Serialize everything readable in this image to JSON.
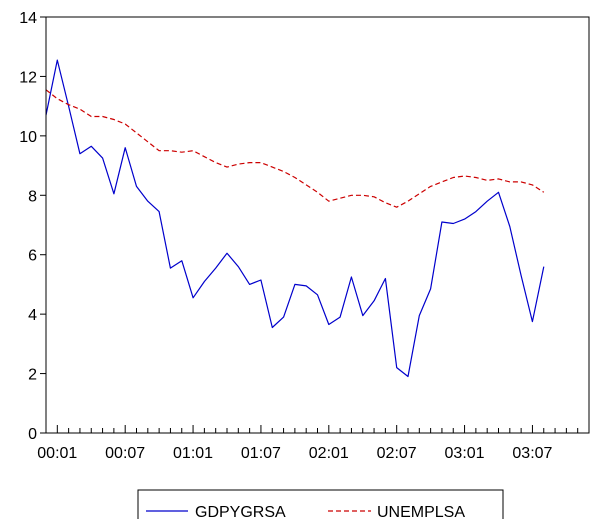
{
  "chart_data": {
    "type": "line",
    "title": "",
    "xlabel": "",
    "ylabel": "",
    "ylim": [
      0,
      14
    ],
    "yticks": [
      0,
      2,
      4,
      6,
      8,
      10,
      12,
      14
    ],
    "y_tick_labels": [
      "0",
      "2",
      "4",
      "6",
      "8",
      "10",
      "12",
      "14"
    ],
    "x_tick_labels": [
      "00:01",
      "00:07",
      "01:01",
      "01:07",
      "02:01",
      "02:07",
      "03:01",
      "03:07"
    ],
    "x_tick_positions": [
      1,
      7,
      13,
      19,
      25,
      31,
      37,
      43
    ],
    "x_range": [
      0,
      48
    ],
    "grid": false,
    "legend_placement": "bottom-center",
    "series": [
      {
        "name": "GDPYGRSA",
        "color": "#0000cc",
        "style": "solid",
        "x": [
          0,
          1,
          2,
          3,
          4,
          5,
          6,
          7,
          8,
          9,
          10,
          11,
          12,
          13,
          14,
          15,
          16,
          17,
          18,
          19,
          20,
          21,
          22,
          23,
          24,
          25,
          26,
          27,
          28,
          29,
          30,
          31,
          32,
          33,
          34,
          35,
          36,
          37,
          38,
          39,
          40,
          41,
          42,
          43,
          44
        ],
        "values": [
          10.7,
          12.55,
          11.0,
          9.4,
          9.65,
          9.25,
          8.05,
          9.6,
          8.3,
          7.8,
          7.45,
          5.55,
          5.8,
          4.55,
          5.1,
          5.55,
          6.05,
          5.6,
          5.0,
          5.15,
          3.55,
          3.9,
          5.0,
          4.95,
          4.65,
          3.65,
          3.9,
          5.25,
          3.95,
          4.45,
          5.2,
          2.2,
          1.9,
          3.95,
          4.85,
          7.1,
          7.05,
          7.2,
          7.45,
          7.8,
          8.1,
          6.95,
          5.3,
          3.75,
          5.6
        ]
      },
      {
        "name": "UNEMPLSA",
        "color": "#cc0000",
        "style": "dashed",
        "x": [
          0,
          1,
          2,
          3,
          4,
          5,
          6,
          7,
          8,
          9,
          10,
          11,
          12,
          13,
          14,
          15,
          16,
          17,
          18,
          19,
          20,
          21,
          22,
          23,
          24,
          25,
          26,
          27,
          28,
          29,
          30,
          31,
          32,
          33,
          34,
          35,
          36,
          37,
          38,
          39,
          40,
          41,
          42,
          43,
          44
        ],
        "values": [
          11.55,
          11.25,
          11.05,
          10.9,
          10.65,
          10.65,
          10.55,
          10.4,
          10.1,
          9.8,
          9.5,
          9.5,
          9.45,
          9.5,
          9.3,
          9.1,
          8.95,
          9.05,
          9.1,
          9.1,
          8.95,
          8.8,
          8.6,
          8.35,
          8.1,
          7.8,
          7.9,
          8.0,
          8.0,
          7.95,
          7.75,
          7.6,
          7.8,
          8.05,
          8.3,
          8.45,
          8.6,
          8.65,
          8.6,
          8.5,
          8.55,
          8.45,
          8.45,
          8.35,
          8.1
        ]
      }
    ]
  }
}
